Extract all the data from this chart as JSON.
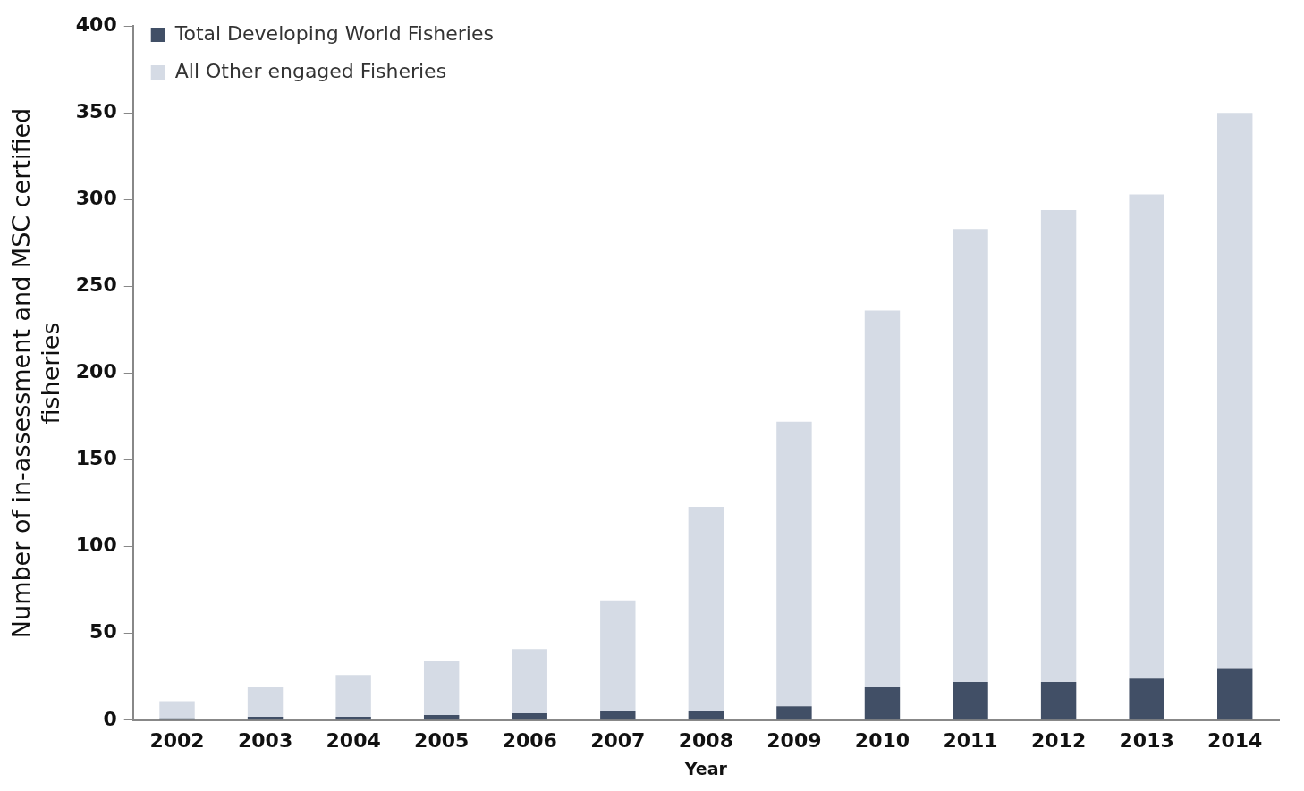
{
  "chart_data": {
    "type": "bar",
    "stacked": true,
    "xlabel": "Year",
    "ylabel": "Number of in-assessment and MSC certified\nfisheries",
    "categories": [
      "2002",
      "2003",
      "2004",
      "2005",
      "2006",
      "2007",
      "2008",
      "2009",
      "2010",
      "2011",
      "2012",
      "2013",
      "2014"
    ],
    "series": [
      {
        "name": "Total Developing World Fisheries",
        "color": "#414f66",
        "values": [
          1,
          2,
          2,
          3,
          4,
          5,
          5,
          8,
          19,
          22,
          22,
          24,
          30
        ]
      },
      {
        "name": "All Other engaged Fisheries",
        "color": "#d5dbe5",
        "values": [
          10,
          17,
          24,
          31,
          37,
          64,
          118,
          164,
          217,
          261,
          272,
          279,
          320
        ]
      }
    ],
    "ylim": [
      0,
      400
    ],
    "yticks": [
      0,
      50,
      100,
      150,
      200,
      250,
      300,
      350,
      400
    ],
    "grid": false,
    "legend": "top left"
  }
}
